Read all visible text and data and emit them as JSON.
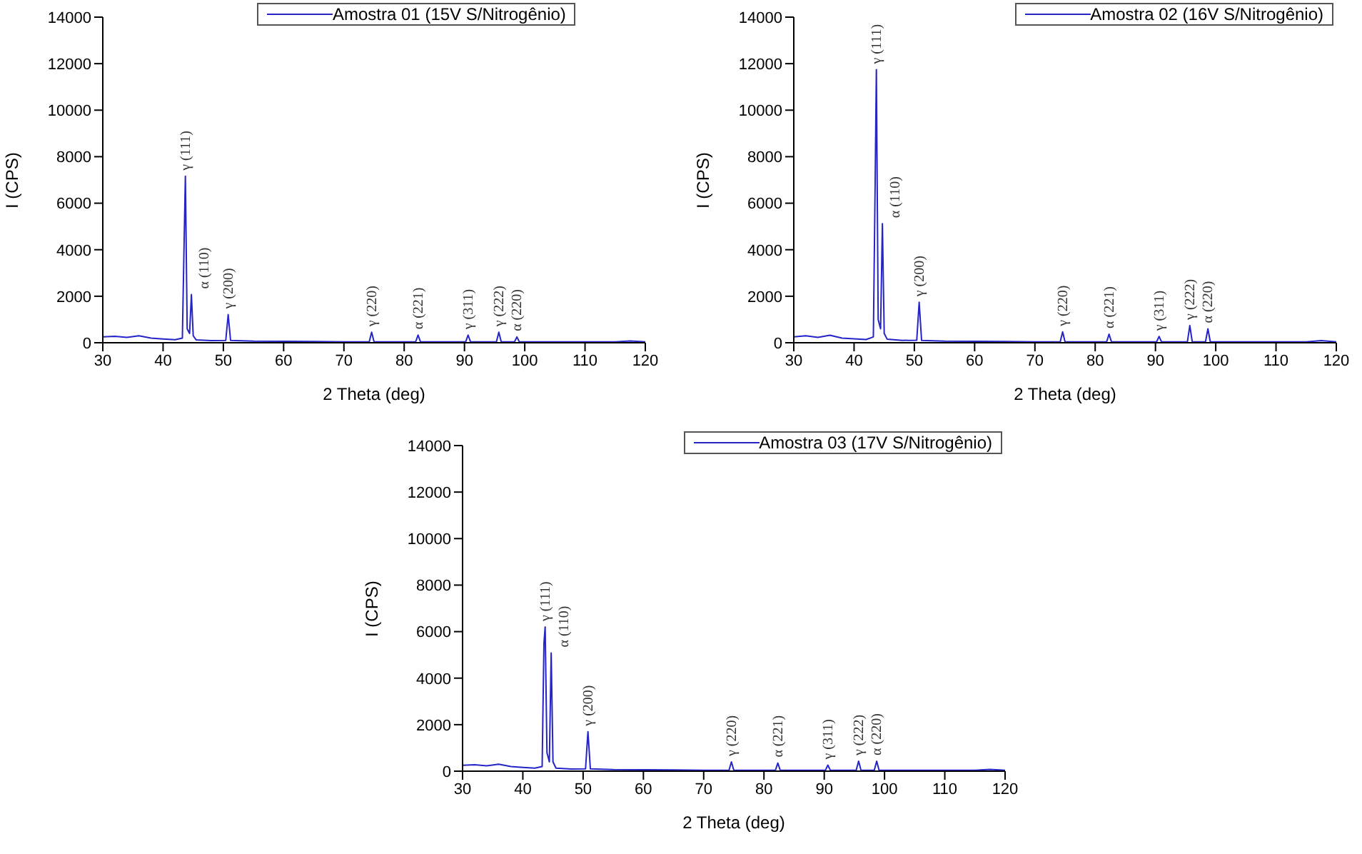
{
  "chart_data": [
    {
      "type": "line",
      "xlabel": "2 Theta (deg)",
      "ylabel": "I (CPS)",
      "xlim": [
        30,
        120
      ],
      "xticks": [
        30,
        40,
        50,
        60,
        70,
        80,
        90,
        100,
        110,
        120
      ],
      "ylim": [
        0,
        14000
      ],
      "yticks": [
        0,
        2000,
        4000,
        6000,
        8000,
        10000,
        12000,
        14000
      ],
      "legend": "top",
      "x": [
        30,
        32,
        34,
        36,
        38,
        40,
        42,
        43.2,
        43.5,
        43.7,
        44.0,
        44.4,
        44.7,
        45.0,
        45.5,
        48,
        50.4,
        50.8,
        51.2,
        55,
        60,
        65,
        70,
        74.2,
        74.6,
        75.0,
        80,
        81.9,
        82.3,
        82.7,
        86,
        90.2,
        90.6,
        91.0,
        95.3,
        95.7,
        96.1,
        98.3,
        98.7,
        99.1,
        105,
        110,
        115,
        117.5,
        120
      ],
      "series": [
        {
          "name": "Amostra 01 (15V S/Nitrogênio)",
          "color": "#2424c8",
          "values": [
            250,
            280,
            230,
            300,
            200,
            160,
            130,
            200,
            4430,
            7160,
            600,
            400,
            2070,
            300,
            120,
            90,
            100,
            1210,
            100,
            70,
            60,
            50,
            40,
            40,
            450,
            40,
            40,
            40,
            330,
            40,
            40,
            40,
            330,
            40,
            40,
            450,
            40,
            40,
            250,
            40,
            40,
            40,
            40,
            80,
            40
          ]
        }
      ],
      "annotations": [
        {
          "text": "γ (111)",
          "x": 43.7,
          "y": 7160
        },
        {
          "text": "α (110)",
          "x": 44.7,
          "y": 2070
        },
        {
          "text": "γ (200)",
          "x": 50.8,
          "y": 1210
        },
        {
          "text": "γ (220)",
          "x": 74.6,
          "y": 450
        },
        {
          "text": "α (221)",
          "x": 82.3,
          "y": 330
        },
        {
          "text": "γ (311)",
          "x": 90.6,
          "y": 330
        },
        {
          "text": "γ (222)",
          "x": 95.7,
          "y": 450
        },
        {
          "text": "α (220)",
          "x": 98.7,
          "y": 250
        }
      ]
    },
    {
      "type": "line",
      "xlabel": "2 Theta (deg)",
      "ylabel": "I (CPS)",
      "xlim": [
        30,
        120
      ],
      "xticks": [
        30,
        40,
        50,
        60,
        70,
        80,
        90,
        100,
        110,
        120
      ],
      "ylim": [
        0,
        14000
      ],
      "yticks": [
        0,
        2000,
        4000,
        6000,
        8000,
        10000,
        12000,
        14000
      ],
      "legend": "top right",
      "x": [
        30,
        32,
        34,
        36,
        38,
        40,
        42,
        43.2,
        43.5,
        43.7,
        44.0,
        44.4,
        44.7,
        45.0,
        45.5,
        48,
        50.4,
        50.8,
        51.2,
        55,
        60,
        65,
        70,
        74.2,
        74.6,
        75.0,
        80,
        81.9,
        82.3,
        82.7,
        86,
        90.2,
        90.6,
        91.0,
        95.3,
        95.7,
        96.1,
        98.3,
        98.7,
        99.1,
        105,
        110,
        115,
        117.5,
        120
      ],
      "series": [
        {
          "name": "Amostra 02 (16V S/Nitrogênio)",
          "color": "#2424c8",
          "values": [
            250,
            300,
            230,
            320,
            200,
            170,
            140,
            250,
            6900,
            11740,
            1000,
            600,
            5120,
            400,
            150,
            100,
            110,
            1740,
            100,
            70,
            60,
            50,
            40,
            40,
            470,
            40,
            40,
            40,
            370,
            40,
            40,
            40,
            270,
            40,
            40,
            740,
            40,
            40,
            600,
            40,
            40,
            40,
            40,
            90,
            40
          ]
        }
      ],
      "annotations": [
        {
          "text": "γ (111)",
          "x": 43.7,
          "y": 11740
        },
        {
          "text": "α (110)",
          "x": 44.7,
          "y": 5120
        },
        {
          "text": "γ (200)",
          "x": 50.8,
          "y": 1740
        },
        {
          "text": "γ (220)",
          "x": 74.6,
          "y": 470
        },
        {
          "text": "α (221)",
          "x": 82.3,
          "y": 370
        },
        {
          "text": "γ (311)",
          "x": 90.6,
          "y": 270
        },
        {
          "text": "γ (222)",
          "x": 95.7,
          "y": 740
        },
        {
          "text": "α (220)",
          "x": 98.7,
          "y": 600
        }
      ]
    },
    {
      "type": "line",
      "xlabel": "2 Theta (deg)",
      "ylabel": "I (CPS)",
      "xlim": [
        30,
        120
      ],
      "xticks": [
        30,
        40,
        50,
        60,
        70,
        80,
        90,
        100,
        110,
        120
      ],
      "ylim": [
        0,
        14000
      ],
      "yticks": [
        0,
        2000,
        4000,
        6000,
        8000,
        10000,
        12000,
        14000
      ],
      "legend": "top right",
      "x": [
        30,
        32,
        34,
        36,
        38,
        40,
        42,
        43.2,
        43.5,
        43.7,
        44.0,
        44.4,
        44.7,
        45.0,
        45.5,
        48,
        50.4,
        50.8,
        51.2,
        55,
        60,
        65,
        70,
        74.2,
        74.6,
        75.0,
        80,
        81.9,
        82.3,
        82.7,
        86,
        90.2,
        90.6,
        91.0,
        95.3,
        95.7,
        96.1,
        98.3,
        98.7,
        99.1,
        105,
        110,
        115,
        117.5,
        120
      ],
      "series": [
        {
          "name": "Amostra 03 (17V S/Nitrogênio)",
          "color": "#2424c8",
          "values": [
            250,
            280,
            230,
            300,
            200,
            160,
            130,
            200,
            5500,
            6200,
            800,
            400,
            5080,
            400,
            130,
            90,
            100,
            1700,
            100,
            70,
            60,
            50,
            40,
            40,
            400,
            40,
            40,
            40,
            350,
            40,
            40,
            40,
            260,
            40,
            40,
            430,
            40,
            40,
            430,
            40,
            40,
            40,
            40,
            80,
            40
          ]
        }
      ],
      "annotations": [
        {
          "text": "γ (111)",
          "x": 43.7,
          "y": 6200
        },
        {
          "text": "α (110)",
          "x": 44.7,
          "y": 5080
        },
        {
          "text": "γ (200)",
          "x": 50.8,
          "y": 1700
        },
        {
          "text": "γ (220)",
          "x": 74.6,
          "y": 400
        },
        {
          "text": "α (221)",
          "x": 82.3,
          "y": 350
        },
        {
          "text": "γ (311)",
          "x": 90.6,
          "y": 260
        },
        {
          "text": "γ (222)",
          "x": 95.7,
          "y": 430
        },
        {
          "text": "α (220)",
          "x": 98.7,
          "y": 430
        }
      ]
    }
  ]
}
